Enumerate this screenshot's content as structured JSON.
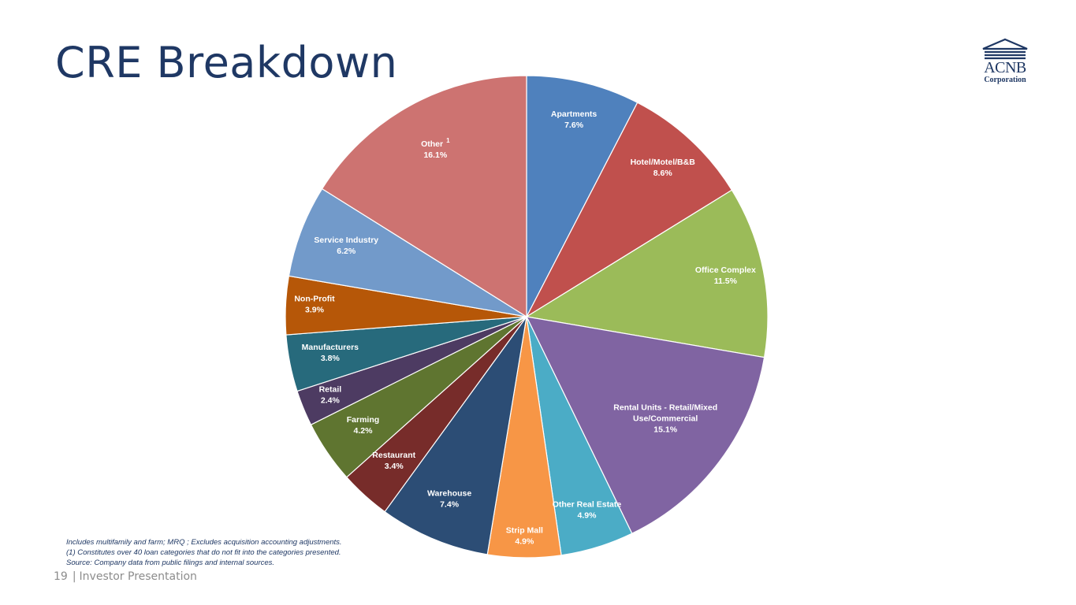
{
  "header": {
    "title": "CRE Breakdown",
    "logo": {
      "name": "ACNB",
      "subtitle": "Corporation"
    }
  },
  "chart_data": {
    "type": "pie",
    "title": "",
    "start_angle_deg": 0,
    "direction": "clockwise",
    "slices": [
      {
        "label": "Apartments",
        "value": 7.6,
        "value_text": "7.6%",
        "color": "#4f81bd"
      },
      {
        "label": "Hotel/Motel/B&B",
        "value": 8.6,
        "value_text": "8.6%",
        "color": "#c0504d"
      },
      {
        "label": "Office Complex",
        "value": 11.5,
        "value_text": "11.5%",
        "color": "#9bbb59"
      },
      {
        "label": "Rental Units - Retail/Mixed Use/Commercial",
        "value": 15.1,
        "value_text": "15.1%",
        "color": "#8064a2"
      },
      {
        "label": "Other Real Estate",
        "value": 4.9,
        "value_text": "4.9%",
        "color": "#4bacc6"
      },
      {
        "label": "Strip Mall",
        "value": 4.9,
        "value_text": "4.9%",
        "color": "#f79646"
      },
      {
        "label": "Warehouse",
        "value": 7.4,
        "value_text": "7.4%",
        "color": "#2c4d75"
      },
      {
        "label": "Restaurant",
        "value": 3.4,
        "value_text": "3.4%",
        "color": "#772c2a"
      },
      {
        "label": "Farming",
        "value": 4.2,
        "value_text": "4.2%",
        "color": "#5f7530"
      },
      {
        "label": "Retail",
        "value": 2.4,
        "value_text": "2.4%",
        "color": "#4d3b62"
      },
      {
        "label": "Manufacturers",
        "value": 3.8,
        "value_text": "3.8%",
        "color": "#276a7c"
      },
      {
        "label": "Non-Profit",
        "value": 3.9,
        "value_text": "3.9%",
        "color": "#b65708"
      },
      {
        "label": "Service Industry",
        "value": 6.2,
        "value_text": "6.2%",
        "color": "#729aca"
      },
      {
        "label": "Other",
        "superscript": "1",
        "value": 16.1,
        "value_text": "16.1%",
        "color": "#cd7371"
      }
    ]
  },
  "footnotes": [
    "Includes multifamily and farm; MRQ ; Excludes acquisition accounting adjustments.",
    "(1) Constitutes over 40 loan categories that do not fit into the categories presented.",
    "Source: Company data from public filings and internal sources."
  ],
  "footer": {
    "page_number": "19",
    "separator": "|",
    "label": "Investor Presentation"
  }
}
